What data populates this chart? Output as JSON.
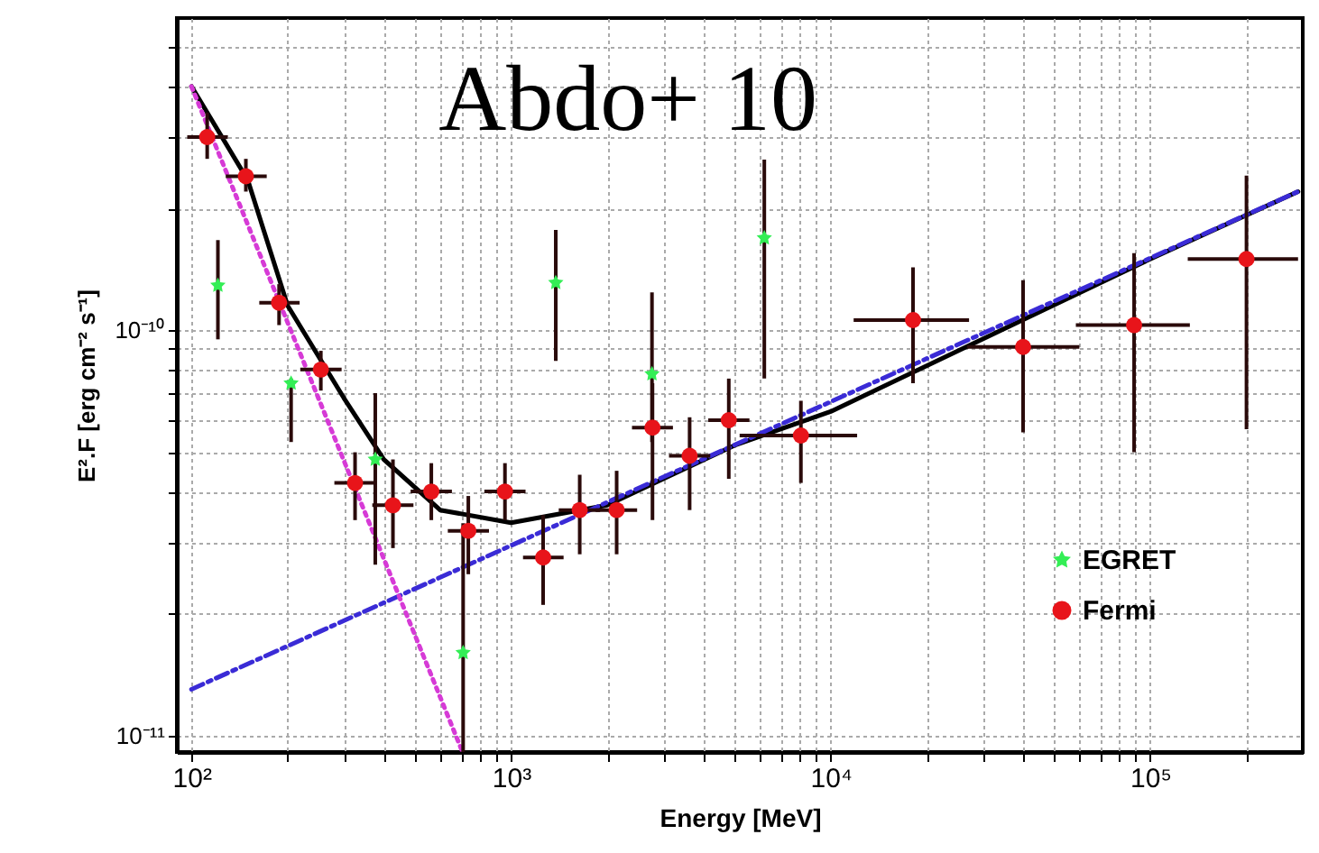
{
  "chart_data": {
    "type": "scatter",
    "xlabel": "Energy [MeV]",
    "ylabel": "E².F [erg cm⁻² s⁻¹]",
    "annotations": [
      "Abdo+ 10"
    ],
    "log": "xy",
    "grid": true,
    "legend": "bottom right",
    "xlim": [
      90,
      300000
    ],
    "ylim": [
      9.1e-12,
      5.9e-10
    ],
    "xticks": [
      {
        "value": 100,
        "label": "10²"
      },
      {
        "value": 200,
        "label": null
      },
      {
        "value": 300,
        "label": null
      },
      {
        "value": 400,
        "label": null
      },
      {
        "value": 500,
        "label": null
      },
      {
        "value": 600,
        "label": null
      },
      {
        "value": 700,
        "label": null
      },
      {
        "value": 800,
        "label": null
      },
      {
        "value": 900,
        "label": null
      },
      {
        "value": 1000,
        "label": "10³"
      },
      {
        "value": 2000,
        "label": null
      },
      {
        "value": 3000,
        "label": null
      },
      {
        "value": 4000,
        "label": null
      },
      {
        "value": 5000,
        "label": null
      },
      {
        "value": 6000,
        "label": null
      },
      {
        "value": 7000,
        "label": null
      },
      {
        "value": 8000,
        "label": null
      },
      {
        "value": 9000,
        "label": null
      },
      {
        "value": 10000,
        "label": "10⁴"
      },
      {
        "value": 20000,
        "label": null
      },
      {
        "value": 30000,
        "label": null
      },
      {
        "value": 40000,
        "label": null
      },
      {
        "value": 50000,
        "label": null
      },
      {
        "value": 60000,
        "label": null
      },
      {
        "value": 70000,
        "label": null
      },
      {
        "value": 80000,
        "label": null
      },
      {
        "value": 90000,
        "label": null
      },
      {
        "value": 100000,
        "label": "10⁵"
      },
      {
        "value": 200000,
        "label": null
      }
    ],
    "yticks": [
      {
        "value": 1e-11,
        "label": "10⁻¹¹"
      },
      {
        "value": 2e-11,
        "label": null
      },
      {
        "value": 3e-11,
        "label": null
      },
      {
        "value": 4e-11,
        "label": null
      },
      {
        "value": 5e-11,
        "label": null
      },
      {
        "value": 6e-11,
        "label": null
      },
      {
        "value": 7e-11,
        "label": null
      },
      {
        "value": 8e-11,
        "label": null
      },
      {
        "value": 9e-11,
        "label": null
      },
      {
        "value": 1e-10,
        "label": "10⁻¹⁰"
      },
      {
        "value": 2e-10,
        "label": null
      },
      {
        "value": 3e-10,
        "label": null
      },
      {
        "value": 4e-10,
        "label": null
      },
      {
        "value": 5e-10,
        "label": null
      }
    ],
    "series": [
      {
        "type": "line",
        "color": "#000000",
        "line_style": "solid",
        "x": [
          100,
          150,
          200,
          300,
          400,
          600,
          1000,
          2000,
          5000,
          10000,
          100000,
          290000
        ],
        "values": [
          4e-10,
          2.35e-10,
          1.15e-10,
          6.8e-11,
          4.8e-11,
          3.6e-11,
          3.35e-11,
          3.7e-11,
          5.2e-11,
          6.3e-11,
          1.5e-10,
          2.2e-10
        ]
      },
      {
        "type": "line",
        "color": "#3a2bd6",
        "line_style": "dashed",
        "x": [
          100,
          290000
        ],
        "values": [
          1.3e-11,
          2.2e-10
        ]
      },
      {
        "type": "line",
        "color": "#d63ad6",
        "line_style": "dotted",
        "x": [
          100,
          705
        ],
        "values": [
          4e-10,
          9.1e-12
        ]
      },
      {
        "type": "scatter",
        "name": "EGRET",
        "color": "#33ee55",
        "marker": "star",
        "x": [
          121,
          205,
          376,
          708,
          1380,
          2760,
          6200
        ],
        "values": [
          1.29e-10,
          7.4e-11,
          4.8e-11,
          1.6e-11,
          1.31e-10,
          7.8e-11,
          1.69e-10
        ],
        "errors": [
          [
            9.5e-11,
            1.67e-10
          ],
          [
            5.3e-11,
            7.6e-11
          ],
          [
            2.64e-11,
            7e-11
          ],
          [
            9.1e-12,
            3.34e-11
          ],
          [
            8.4e-11,
            1.77e-10
          ],
          [
            5.3e-11,
            1.24e-10
          ],
          [
            7.6e-11,
            2.64e-10
          ]
        ]
      },
      {
        "type": "scatter",
        "name": "Fermi",
        "color": "#e8141a",
        "marker": "circle",
        "x": [
          112,
          148,
          188,
          254,
          325,
          427,
          563,
          735,
          957,
          1260,
          1640,
          2140,
          2770,
          3620,
          4800,
          8070,
          18100,
          40000,
          89000,
          200000
        ],
        "values": [
          3e-10,
          2.4e-10,
          1.17e-10,
          8e-11,
          4.2e-11,
          3.7e-11,
          4e-11,
          3.2e-11,
          4e-11,
          2.75e-11,
          3.6e-11,
          3.6e-11,
          5.75e-11,
          4.9e-11,
          6e-11,
          5.5e-11,
          1.06e-10,
          9.1e-11,
          1.03e-10,
          1.5e-10
        ],
        "errors": [
          [
            2.65e-10,
            3.45e-10
          ],
          [
            2.2e-10,
            2.65e-10
          ],
          [
            1.03e-10,
            1.3e-10
          ],
          [
            7.1e-11,
            8.9e-11
          ],
          [
            3.4e-11,
            5e-11
          ],
          [
            2.9e-11,
            4.8e-11
          ],
          [
            3.4e-11,
            4.7e-11
          ],
          [
            2.5e-11,
            3.9e-11
          ],
          [
            3.4e-11,
            4.7e-11
          ],
          [
            2.1e-11,
            3.5e-11
          ],
          [
            2.8e-11,
            4.4e-11
          ],
          [
            2.8e-11,
            4.5e-11
          ],
          [
            3.4e-11,
            7.4e-11
          ],
          [
            3.6e-11,
            6.1e-11
          ],
          [
            4.3e-11,
            7.6e-11
          ],
          [
            4.2e-11,
            6.7e-11
          ],
          [
            7.4e-11,
            1.43e-10
          ],
          [
            5.6e-11,
            1.33e-10
          ],
          [
            5e-11,
            1.55e-10
          ],
          [
            5.7e-11,
            2.41e-10
          ]
        ],
        "xerrors": [
          [
            97,
            130
          ],
          [
            128,
            172
          ],
          [
            163,
            218
          ],
          [
            219,
            295
          ],
          [
            280,
            377
          ],
          [
            368,
            495
          ],
          [
            485,
            653
          ],
          [
            634,
            853
          ],
          [
            825,
            1110
          ],
          [
            1090,
            1460
          ],
          [
            1410,
            1900
          ],
          [
            1840,
            2480
          ],
          [
            2390,
            3210
          ],
          [
            3120,
            4200
          ],
          [
            4140,
            5570
          ],
          [
            5190,
            12100
          ],
          [
            11800,
            27100
          ],
          [
            26700,
            60000
          ],
          [
            58500,
            133000
          ],
          [
            131000,
            290000
          ]
        ]
      }
    ]
  }
}
